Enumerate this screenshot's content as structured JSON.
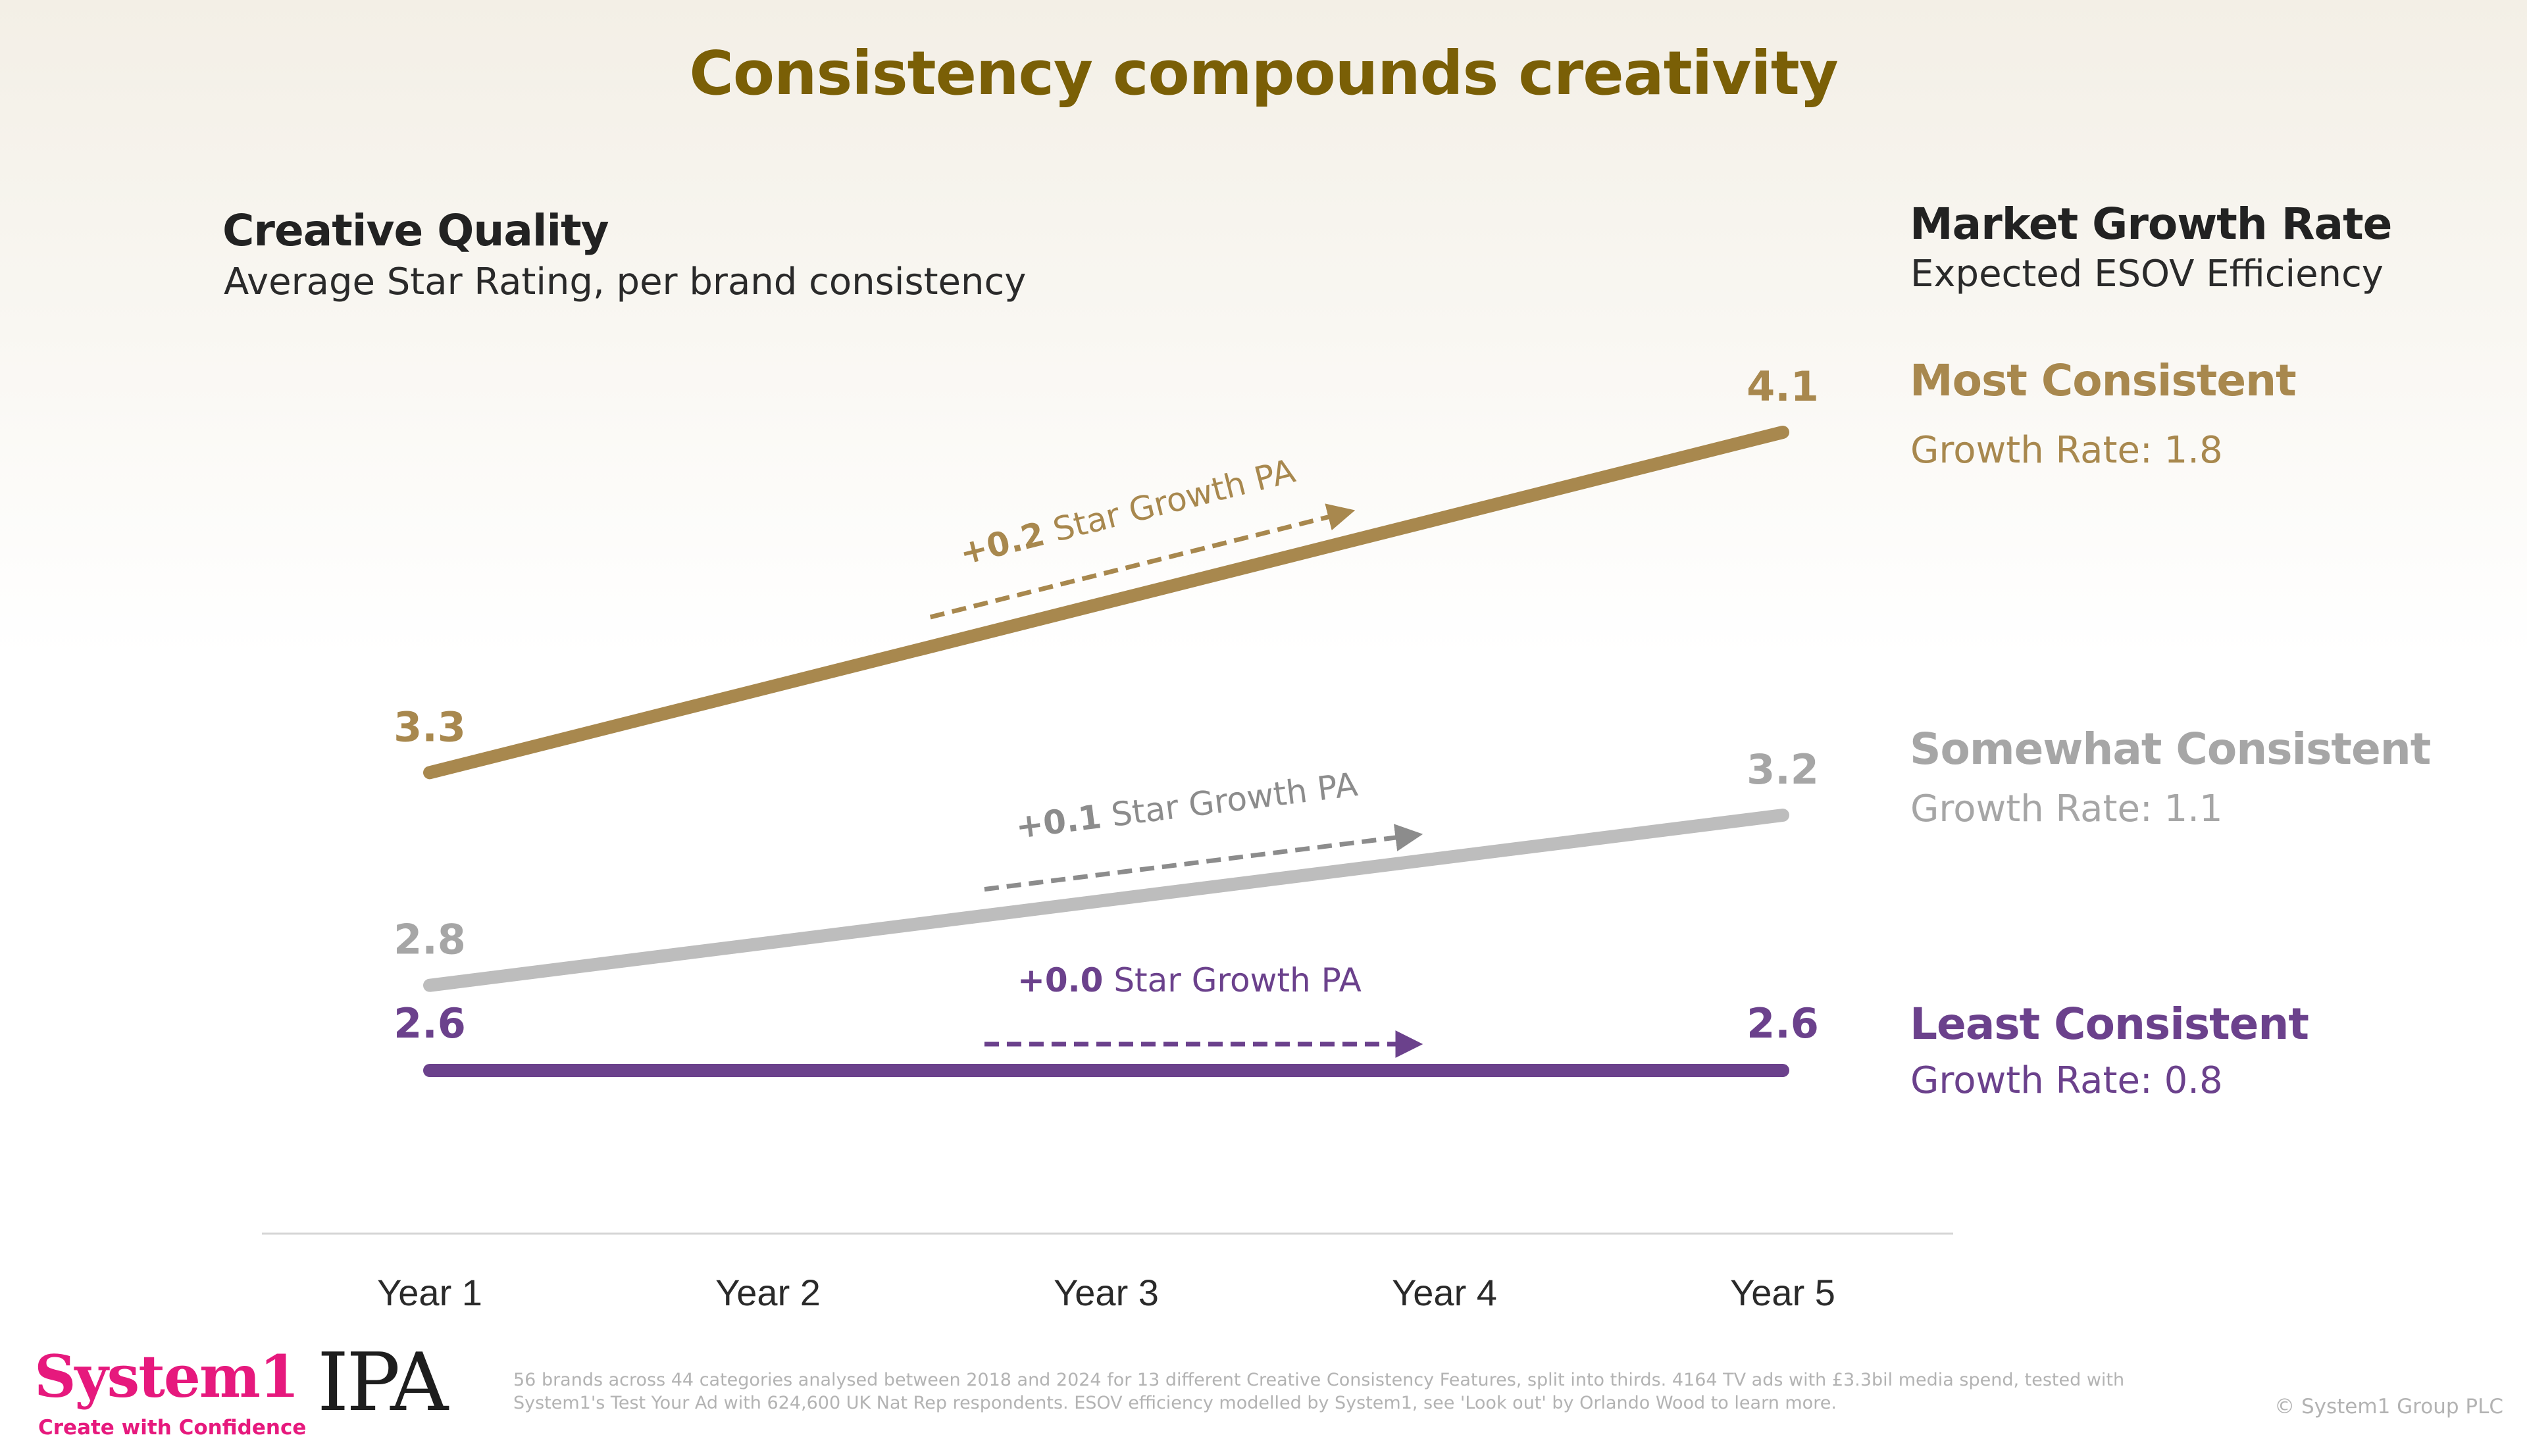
{
  "title": "Consistency compounds creativity",
  "left_header": {
    "title": "Creative Quality",
    "subtitle": "Average Star Rating, per brand consistency"
  },
  "right_header": {
    "title": "Market Growth Rate",
    "subtitle": "Expected ESOV Efficiency"
  },
  "groups": [
    {
      "name": "Most Consistent",
      "growth_rate": "Growth Rate: 1.8",
      "color": "#a8884e"
    },
    {
      "name": "Somewhat Consistent",
      "growth_rate": "Growth Rate: 1.1",
      "color": "#a6a6a6"
    },
    {
      "name": "Least Consistent",
      "growth_rate": "Growth Rate: 0.8",
      "color": "#6b418c"
    }
  ],
  "chart_data": {
    "type": "line",
    "title": "Creative Quality",
    "ylabel": "Average Star Rating, per brand consistency",
    "xlabel": "",
    "categories": [
      "Year 1",
      "Year 2",
      "Year 3",
      "Year 4",
      "Year 5"
    ],
    "ylim": [
      2.6,
      4.1
    ],
    "grid": false,
    "series": [
      {
        "name": "Most Consistent",
        "start": 3.3,
        "end": 4.1,
        "start_label": "3.3",
        "end_label": "4.1",
        "growth_bold": "+0.2",
        "growth_text": " Star Growth PA",
        "color": "#a8884e",
        "label_color": "#a8884e",
        "arrow_color": "#a8884e"
      },
      {
        "name": "Somewhat Consistent",
        "start": 2.8,
        "end": 3.2,
        "start_label": "2.8",
        "end_label": "3.2",
        "growth_bold": "+0.1",
        "growth_text": " Star Growth PA",
        "color": "#bdbdbd",
        "label_color": "#a6a6a6",
        "arrow_color": "#8c8c8c"
      },
      {
        "name": "Least Consistent",
        "start": 2.6,
        "end": 2.6,
        "start_label": "2.6",
        "end_label": "2.6",
        "growth_bold": "+0.0",
        "growth_text": " Star Growth PA",
        "color": "#6b418c",
        "label_color": "#6b418c",
        "arrow_color": "#6b418c"
      }
    ]
  },
  "footer": {
    "logo_text": "System1",
    "tagline": "Create with Confidence",
    "partner_logo": "IPA",
    "footnote": "56 brands across 44 categories analysed between 2018 and 2024 for 13 different Creative Consistency Features, split into thirds. 4164 TV ads with £3.3bil media spend, tested with System1's Test Your Ad with 624,600 UK Nat Rep respondents. ESOV efficiency modelled by System1, see 'Look out' by Orlando Wood to learn more.",
    "copyright": "© System1 Group PLC"
  }
}
